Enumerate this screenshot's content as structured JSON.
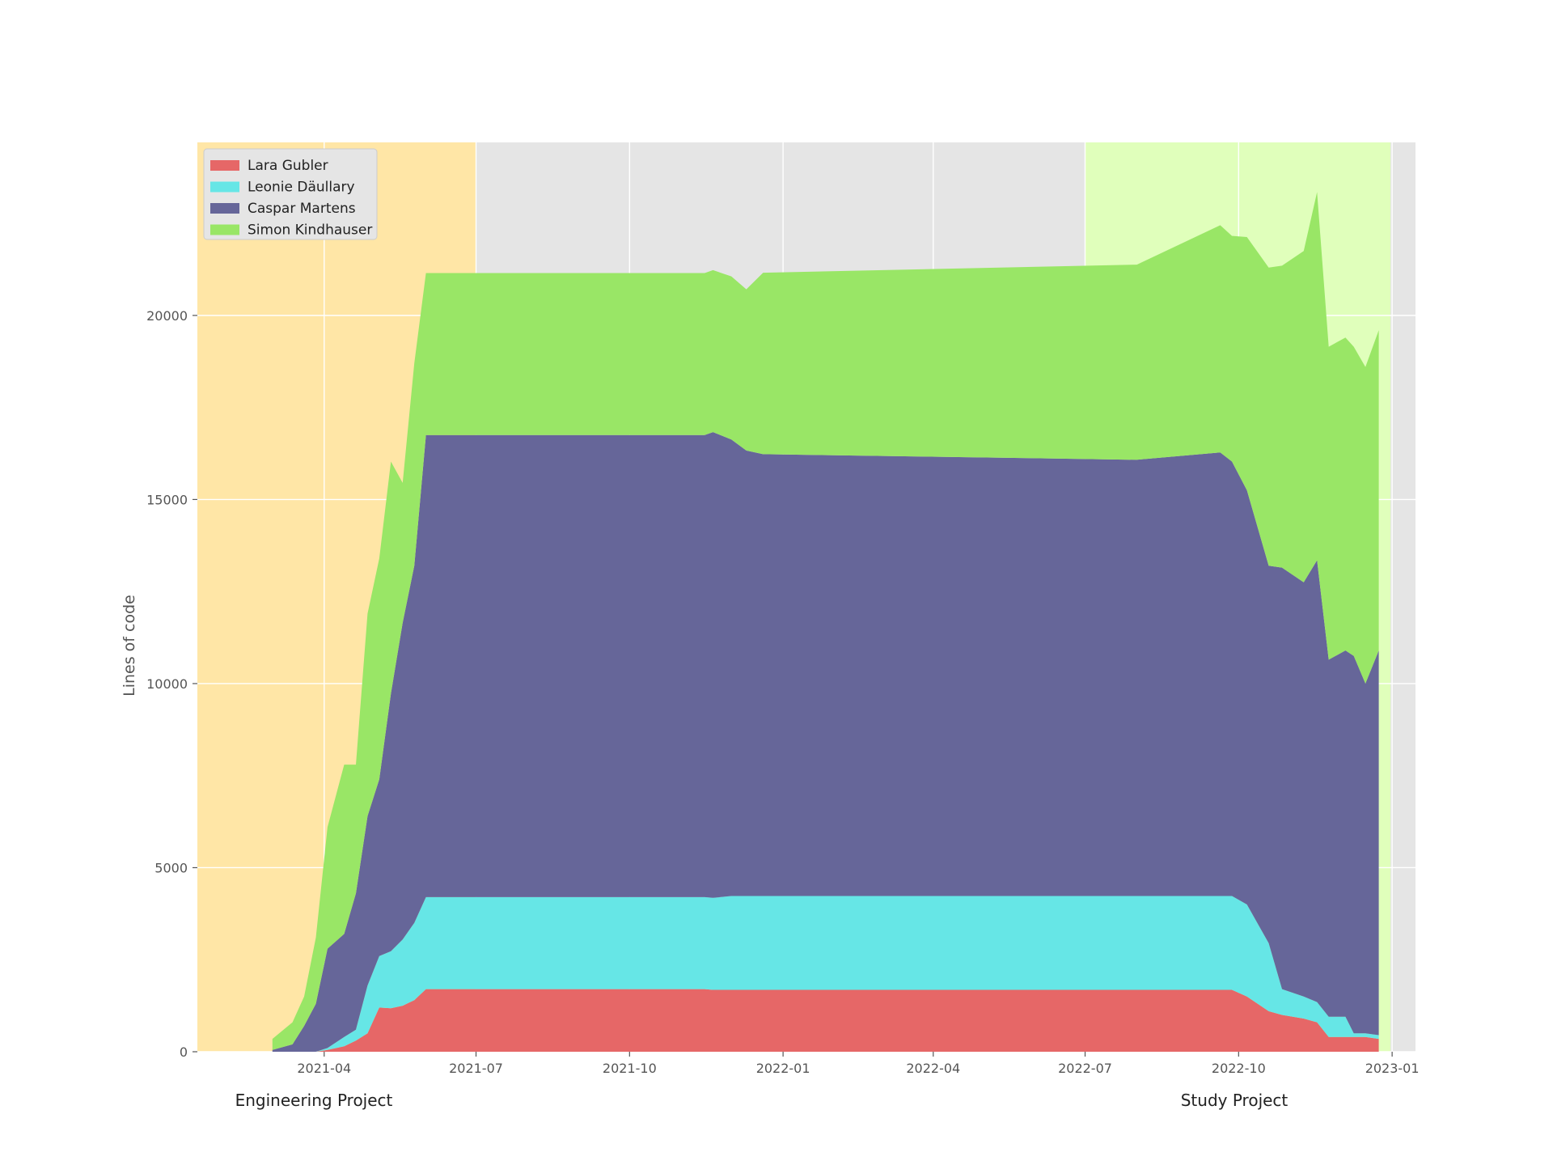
{
  "chart_data": {
    "type": "area",
    "stacked": true,
    "xlabel": "",
    "ylabel": "Lines of code",
    "xlim": [
      "2021-01-15",
      "2023-01-15"
    ],
    "ylim": [
      0,
      24700
    ],
    "x_ticks": [
      "2021-04-01",
      "2021-07-01",
      "2021-10-01",
      "2022-01-01",
      "2022-04-01",
      "2022-07-01",
      "2022-10-01",
      "2023-01-01"
    ],
    "x_tick_labels": [
      "2021-04",
      "2021-07",
      "2021-10",
      "2022-01",
      "2022-04",
      "2022-07",
      "2022-10",
      "2023-01"
    ],
    "y_ticks": [
      0,
      5000,
      10000,
      15000,
      20000
    ],
    "y_tick_labels": [
      "0",
      "5000",
      "10000",
      "15000",
      "20000"
    ],
    "grid": true,
    "legend_position": "top-left",
    "background_color": "#e5e5e5",
    "periods": [
      {
        "label": "Engineering Project",
        "start": "2021-01-15",
        "end": "2021-07-01",
        "color": "#ffe6a6"
      },
      {
        "label": "Study Project",
        "start": "2022-07-01",
        "end": "2022-12-31",
        "color": "#e0ffbb"
      }
    ],
    "x": [
      "2021-03-01",
      "2021-03-13",
      "2021-03-20",
      "2021-03-27",
      "2021-04-03",
      "2021-04-13",
      "2021-04-20",
      "2021-04-27",
      "2021-05-04",
      "2021-05-11",
      "2021-05-18",
      "2021-05-25",
      "2021-06-01",
      "2021-06-08",
      "2021-11-15",
      "2021-11-20",
      "2021-12-01",
      "2021-12-10",
      "2021-12-20",
      "2022-08-01",
      "2022-09-20",
      "2022-09-27",
      "2022-10-06",
      "2022-10-19",
      "2022-10-27",
      "2022-11-09",
      "2022-11-17",
      "2022-11-24",
      "2022-12-04",
      "2022-12-09",
      "2022-12-16",
      "2022-12-24"
    ],
    "series": [
      {
        "name": "Lara Gubler",
        "color": "#e66767",
        "values": [
          0,
          0,
          0,
          0,
          50,
          150,
          300,
          500,
          1200,
          1180,
          1250,
          1400,
          1700,
          1700,
          1700,
          1680,
          1680,
          1680,
          1680,
          1680,
          1680,
          1680,
          1500,
          1100,
          1000,
          900,
          800,
          400,
          400,
          400,
          400,
          350
        ]
      },
      {
        "name": "Leonie Däullary",
        "color": "#66e6e6",
        "values": [
          0,
          0,
          0,
          0,
          50,
          250,
          300,
          1300,
          1400,
          1550,
          1800,
          2100,
          2500,
          2500,
          2500,
          2500,
          2550,
          2550,
          2550,
          2550,
          2550,
          2550,
          2500,
          1850,
          700,
          600,
          550,
          550,
          550,
          100,
          100,
          100
        ]
      },
      {
        "name": "Caspar Martens",
        "color": "#666699",
        "values": [
          50,
          200,
          700,
          1300,
          2700,
          2800,
          3700,
          4600,
          4800,
          7000,
          8600,
          9700,
          12550,
          12550,
          12550,
          12650,
          12400,
          12100,
          12000,
          11850,
          12050,
          11800,
          11250,
          10250,
          11450,
          11250,
          12000,
          9700,
          9950,
          10250,
          9500,
          10450
        ]
      },
      {
        "name": "Simon Kindhauser",
        "color": "#99e666",
        "values": [
          300,
          600,
          800,
          1800,
          3300,
          4600,
          3500,
          5500,
          6000,
          6300,
          3800,
          5500,
          4400,
          4400,
          4400,
          4400,
          4430,
          4380,
          4930,
          5300,
          6170,
          6130,
          6880,
          8100,
          8200,
          9000,
          10000,
          8500,
          8500,
          8400,
          8600,
          8700
        ]
      }
    ]
  }
}
